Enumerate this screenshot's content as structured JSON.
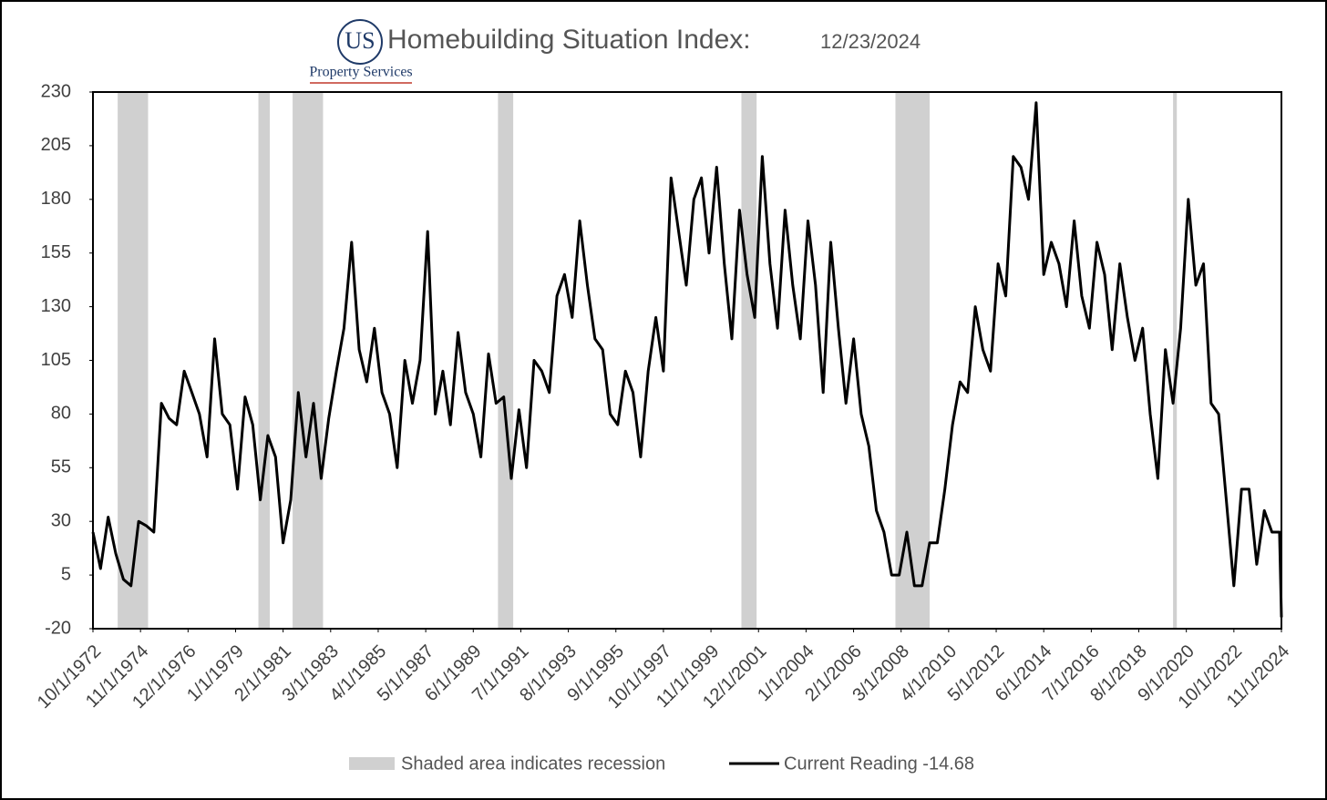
{
  "chart_data": {
    "type": "line",
    "title": "Homebuilding Situation Index:",
    "date": "12/23/2024",
    "logo": {
      "initials": "US",
      "name": "Property Services"
    },
    "recession_legend": "Shaded area indicates recession",
    "recessions": [
      [
        "11/1/1973",
        "3/1/1975"
      ],
      [
        "1/1/1980",
        "7/1/1980"
      ],
      [
        "7/1/1981",
        "11/1/1982"
      ],
      [
        "7/1/1990",
        "3/1/1991"
      ],
      [
        "3/1/2001",
        "11/1/2001"
      ],
      [
        "12/1/2007",
        "6/1/2009"
      ],
      [
        "2/1/2020",
        "4/1/2020"
      ]
    ],
    "recession_color": "#d0d0d0",
    "xlim": [
      "10/1/1972",
      "11/1/2024"
    ],
    "xticks": [
      "10/1/1972",
      "11/1/1974",
      "12/1/1976",
      "1/1/1979",
      "2/1/1981",
      "3/1/1983",
      "4/1/1985",
      "5/1/1987",
      "6/1/1989",
      "7/1/1991",
      "8/1/1993",
      "9/1/1995",
      "10/1/1997",
      "11/1/1999",
      "12/1/2001",
      "1/1/2004",
      "2/1/2006",
      "3/1/2008",
      "4/1/2010",
      "5/1/2012",
      "6/1/2014",
      "7/1/2016",
      "8/1/2018",
      "9/1/2020",
      "10/1/2022",
      "11/1/2024"
    ],
    "ylim": [
      -20,
      230
    ],
    "yticks": [
      -20,
      5,
      30,
      55,
      80,
      105,
      130,
      155,
      180,
      205,
      230
    ],
    "x": [
      "10/1/1972",
      "2/1/1973",
      "6/1/1973",
      "10/1/1973",
      "2/1/1974",
      "6/1/1974",
      "10/1/1974",
      "2/1/1975",
      "6/1/1975",
      "10/1/1975",
      "2/1/1976",
      "6/1/1976",
      "10/1/1976",
      "2/1/1977",
      "6/1/1977",
      "10/1/1977",
      "2/1/1978",
      "6/1/1978",
      "10/1/1978",
      "2/1/1979",
      "6/1/1979",
      "10/1/1979",
      "2/1/1980",
      "6/1/1980",
      "10/1/1980",
      "2/1/1981",
      "6/1/1981",
      "10/1/1981",
      "2/1/1982",
      "6/1/1982",
      "10/1/1982",
      "2/1/1983",
      "6/1/1983",
      "10/1/1983",
      "2/1/1984",
      "6/1/1984",
      "10/1/1984",
      "2/1/1985",
      "6/1/1985",
      "10/1/1985",
      "2/1/1986",
      "6/1/1986",
      "10/1/1986",
      "2/1/1987",
      "6/1/1987",
      "10/1/1987",
      "2/1/1988",
      "6/1/1988",
      "10/1/1988",
      "2/1/1989",
      "6/1/1989",
      "10/1/1989",
      "2/1/1990",
      "6/1/1990",
      "10/1/1990",
      "2/1/1991",
      "6/1/1991",
      "10/1/1991",
      "2/1/1992",
      "6/1/1992",
      "10/1/1992",
      "2/1/1993",
      "6/1/1993",
      "10/1/1993",
      "2/1/1994",
      "6/1/1994",
      "10/1/1994",
      "2/1/1995",
      "6/1/1995",
      "10/1/1995",
      "2/1/1996",
      "6/1/1996",
      "10/1/1996",
      "2/1/1997",
      "6/1/1997",
      "10/1/1997",
      "2/1/1998",
      "6/1/1998",
      "10/1/1998",
      "2/1/1999",
      "6/1/1999",
      "10/1/1999",
      "2/1/2000",
      "6/1/2000",
      "10/1/2000",
      "2/1/2001",
      "6/1/2001",
      "10/1/2001",
      "2/1/2002",
      "6/1/2002",
      "10/1/2002",
      "2/1/2003",
      "6/1/2003",
      "10/1/2003",
      "2/1/2004",
      "6/1/2004",
      "10/1/2004",
      "2/1/2005",
      "6/1/2005",
      "10/1/2005",
      "2/1/2006",
      "6/1/2006",
      "10/1/2006",
      "2/1/2007",
      "6/1/2007",
      "10/1/2007",
      "2/1/2008",
      "6/1/2008",
      "10/1/2008",
      "2/1/2009",
      "6/1/2009",
      "10/1/2009",
      "2/1/2010",
      "6/1/2010",
      "10/1/2010",
      "2/1/2011",
      "6/1/2011",
      "10/1/2011",
      "2/1/2012",
      "6/1/2012",
      "10/1/2012",
      "2/1/2013",
      "6/1/2013",
      "10/1/2013",
      "2/1/2014",
      "6/1/2014",
      "10/1/2014",
      "2/1/2015",
      "6/1/2015",
      "10/1/2015",
      "2/1/2016",
      "6/1/2016",
      "10/1/2016",
      "2/1/2017",
      "6/1/2017",
      "10/1/2017",
      "2/1/2018",
      "6/1/2018",
      "10/1/2018",
      "2/1/2019",
      "6/1/2019",
      "10/1/2019",
      "2/1/2020",
      "6/1/2020",
      "10/1/2020",
      "2/1/2021",
      "6/1/2021",
      "10/1/2021",
      "2/1/2022",
      "6/1/2022",
      "10/1/2022",
      "2/1/2023",
      "6/1/2023",
      "10/1/2023",
      "2/1/2024",
      "6/1/2024",
      "10/1/2024",
      "11/1/2024"
    ],
    "series": [
      {
        "name": "Current Reading -14.68",
        "color": "#000000",
        "values": [
          25,
          8,
          32,
          15,
          3,
          0,
          30,
          28,
          25,
          85,
          78,
          75,
          100,
          90,
          80,
          60,
          115,
          80,
          75,
          45,
          88,
          75,
          40,
          70,
          60,
          20,
          40,
          90,
          60,
          85,
          50,
          78,
          100,
          120,
          160,
          110,
          95,
          120,
          90,
          80,
          55,
          105,
          85,
          105,
          165,
          80,
          100,
          75,
          118,
          90,
          80,
          60,
          108,
          85,
          88,
          50,
          82,
          55,
          105,
          100,
          90,
          135,
          145,
          125,
          170,
          140,
          115,
          110,
          80,
          75,
          100,
          90,
          60,
          100,
          125,
          100,
          190,
          165,
          140,
          180,
          190,
          155,
          195,
          150,
          115,
          175,
          145,
          125,
          200,
          150,
          120,
          175,
          140,
          115,
          170,
          140,
          90,
          160,
          120,
          85,
          115,
          80,
          65,
          35,
          25,
          5,
          5,
          25,
          0,
          0,
          20,
          20,
          45,
          75,
          95,
          90,
          130,
          110,
          100,
          150,
          135,
          200,
          195,
          180,
          225,
          145,
          160,
          150,
          130,
          170,
          135,
          120,
          160,
          145,
          110,
          150,
          125,
          105,
          120,
          80,
          50,
          110,
          85,
          120,
          180,
          140,
          150,
          85,
          80,
          40,
          0,
          45,
          45,
          10,
          35,
          25,
          25,
          -14.68
        ]
      }
    ]
  }
}
